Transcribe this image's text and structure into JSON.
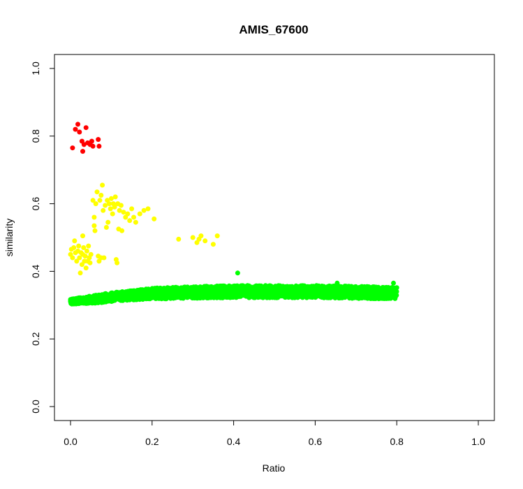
{
  "chart_data": {
    "type": "scatter",
    "title": "AMIS_67600",
    "xlabel": "Ratio",
    "ylabel": "similarity",
    "xlim": [
      0,
      1.0
    ],
    "ylim": [
      0,
      1.0
    ],
    "xticks": [
      "0.0",
      "0.2",
      "0.4",
      "0.6",
      "0.8",
      "1.0"
    ],
    "yticks": [
      "0.0",
      "0.2",
      "0.4",
      "0.6",
      "0.8",
      "1.0"
    ],
    "grid": false,
    "legend": "none",
    "series": [
      {
        "color": "#ff0000",
        "points": [
          [
            0.005,
            0.765
          ],
          [
            0.012,
            0.82
          ],
          [
            0.018,
            0.835
          ],
          [
            0.022,
            0.812
          ],
          [
            0.028,
            0.785
          ],
          [
            0.03,
            0.755
          ],
          [
            0.033,
            0.775
          ],
          [
            0.038,
            0.825
          ],
          [
            0.042,
            0.78
          ],
          [
            0.048,
            0.775
          ],
          [
            0.052,
            0.785
          ],
          [
            0.055,
            0.77
          ],
          [
            0.068,
            0.79
          ],
          [
            0.07,
            0.77
          ]
        ]
      },
      {
        "color": "#ffff00",
        "points": [
          [
            0.0,
            0.45
          ],
          [
            0.002,
            0.465
          ],
          [
            0.005,
            0.44
          ],
          [
            0.008,
            0.47
          ],
          [
            0.01,
            0.49
          ],
          [
            0.012,
            0.455
          ],
          [
            0.015,
            0.43
          ],
          [
            0.018,
            0.46
          ],
          [
            0.02,
            0.475
          ],
          [
            0.022,
            0.44
          ],
          [
            0.024,
            0.395
          ],
          [
            0.026,
            0.455
          ],
          [
            0.028,
            0.42
          ],
          [
            0.03,
            0.45
          ],
          [
            0.032,
            0.47
          ],
          [
            0.034,
            0.43
          ],
          [
            0.036,
            0.445
          ],
          [
            0.038,
            0.41
          ],
          [
            0.04,
            0.46
          ],
          [
            0.042,
            0.43
          ],
          [
            0.044,
            0.475
          ],
          [
            0.046,
            0.44
          ],
          [
            0.048,
            0.425
          ],
          [
            0.05,
            0.45
          ],
          [
            0.03,
            0.505
          ],
          [
            0.055,
            0.61
          ],
          [
            0.058,
            0.56
          ],
          [
            0.062,
            0.6
          ],
          [
            0.065,
            0.635
          ],
          [
            0.068,
            0.445
          ],
          [
            0.07,
            0.43
          ],
          [
            0.072,
            0.61
          ],
          [
            0.075,
            0.625
          ],
          [
            0.078,
            0.655
          ],
          [
            0.08,
            0.58
          ],
          [
            0.082,
            0.44
          ],
          [
            0.085,
            0.595
          ],
          [
            0.088,
            0.53
          ],
          [
            0.09,
            0.61
          ],
          [
            0.092,
            0.545
          ],
          [
            0.095,
            0.6
          ],
          [
            0.098,
            0.585
          ],
          [
            0.1,
            0.615
          ],
          [
            0.103,
            0.57
          ],
          [
            0.105,
            0.6
          ],
          [
            0.108,
            0.59
          ],
          [
            0.11,
            0.62
          ],
          [
            0.112,
            0.435
          ],
          [
            0.114,
            0.425
          ],
          [
            0.116,
            0.6
          ],
          [
            0.118,
            0.525
          ],
          [
            0.12,
            0.58
          ],
          [
            0.124,
            0.595
          ],
          [
            0.126,
            0.52
          ],
          [
            0.13,
            0.575
          ],
          [
            0.135,
            0.56
          ],
          [
            0.14,
            0.57
          ],
          [
            0.145,
            0.55
          ],
          [
            0.15,
            0.585
          ],
          [
            0.155,
            0.56
          ],
          [
            0.16,
            0.545
          ],
          [
            0.17,
            0.57
          ],
          [
            0.18,
            0.58
          ],
          [
            0.19,
            0.585
          ],
          [
            0.205,
            0.555
          ],
          [
            0.265,
            0.495
          ],
          [
            0.3,
            0.5
          ],
          [
            0.31,
            0.485
          ],
          [
            0.315,
            0.495
          ],
          [
            0.32,
            0.505
          ],
          [
            0.33,
            0.49
          ],
          [
            0.35,
            0.48
          ],
          [
            0.36,
            0.505
          ],
          [
            0.075,
            0.44
          ],
          [
            0.058,
            0.535
          ],
          [
            0.06,
            0.52
          ]
        ]
      },
      {
        "color": "#00ff00",
        "x_range": [
          0.0,
          0.8
        ],
        "y_bands": [
          [
            0.0,
            0.303,
            0.318
          ],
          [
            0.05,
            0.305,
            0.327
          ],
          [
            0.1,
            0.31,
            0.337
          ],
          [
            0.15,
            0.315,
            0.343
          ],
          [
            0.2,
            0.318,
            0.35
          ],
          [
            0.3,
            0.32,
            0.355
          ],
          [
            0.4,
            0.322,
            0.358
          ],
          [
            0.5,
            0.322,
            0.358
          ],
          [
            0.6,
            0.322,
            0.358
          ],
          [
            0.7,
            0.32,
            0.356
          ],
          [
            0.8,
            0.318,
            0.352
          ]
        ],
        "outliers": [
          [
            0.41,
            0.395
          ],
          [
            0.792,
            0.365
          ],
          [
            0.654,
            0.365
          ]
        ]
      }
    ]
  }
}
